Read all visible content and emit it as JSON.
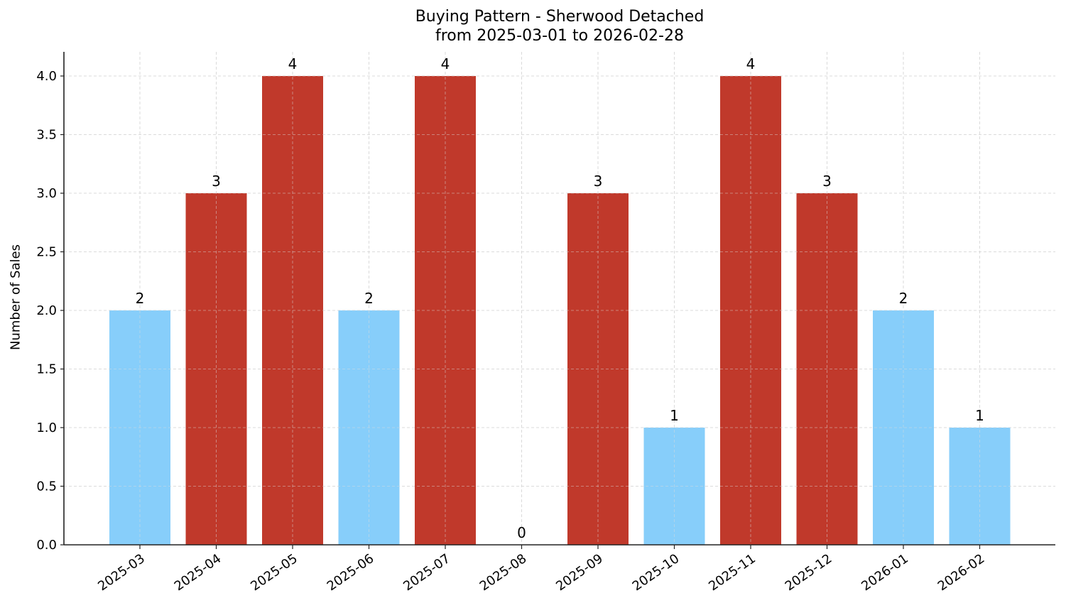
{
  "chart_data": {
    "type": "bar",
    "title": "Buying Pattern - Sherwood Detached",
    "subtitle": "from 2025-03-01 to 2026-02-28",
    "xlabel": "",
    "ylabel": "Number of Sales",
    "categories": [
      "2025-03",
      "2025-04",
      "2025-05",
      "2025-06",
      "2025-07",
      "2025-08",
      "2025-09",
      "2025-10",
      "2025-11",
      "2025-12",
      "2026-01",
      "2026-02"
    ],
    "values": [
      2,
      3,
      4,
      2,
      4,
      0,
      3,
      1,
      4,
      3,
      2,
      1
    ],
    "bar_colors": [
      "#87CEFA",
      "#C0392B",
      "#C0392B",
      "#87CEFA",
      "#C0392B",
      "#87CEFA",
      "#C0392B",
      "#87CEFA",
      "#C0392B",
      "#C0392B",
      "#87CEFA",
      "#87CEFA"
    ],
    "data_labels": [
      "2",
      "3",
      "4",
      "2",
      "4",
      "0",
      "3",
      "1",
      "4",
      "3",
      "2",
      "1"
    ],
    "yticks": [
      "0.0",
      "0.5",
      "1.0",
      "1.5",
      "2.0",
      "2.5",
      "3.0",
      "3.5",
      "4.0"
    ],
    "ylim": [
      0,
      4.2
    ],
    "grid": true,
    "colors": {
      "high": "#C0392B",
      "low": "#87CEFA"
    }
  }
}
